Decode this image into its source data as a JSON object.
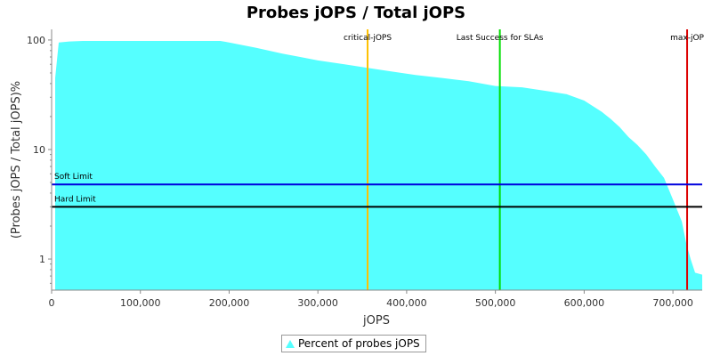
{
  "chart_data": {
    "type": "area",
    "title": "Probes jOPS / Total jOPS",
    "xlabel": "jOPS",
    "ylabel": "(Probes jOPS / Total jOPS)%",
    "x_scale": "linear",
    "y_scale": "log",
    "xlim": [
      0,
      733000
    ],
    "ylim": [
      0.52,
      125
    ],
    "x_tick_labels": [
      "0",
      "100,000",
      "200,000",
      "300,000",
      "400,000",
      "500,000",
      "600,000",
      "700,000"
    ],
    "x_ticks": [
      0,
      100000,
      200000,
      300000,
      400000,
      500000,
      600000,
      700000
    ],
    "y_tick_labels": [
      "1",
      "10",
      "100"
    ],
    "y_ticks": [
      1,
      10,
      100
    ],
    "grid": false,
    "legend_position": "bottom",
    "series": [
      {
        "name": "Percent of probes jOPS",
        "color": "#55ffff",
        "x": [
          4000,
          8000,
          20000,
          35000,
          100000,
          150000,
          190000,
          200000,
          230000,
          260000,
          280000,
          300000,
          330000,
          360000,
          380000,
          410000,
          440000,
          470000,
          500000,
          530000,
          560000,
          580000,
          600000,
          620000,
          630000,
          640000,
          650000,
          660000,
          670000,
          680000,
          690000,
          700000,
          710000,
          715000,
          720000,
          725000,
          733000
        ],
        "y": [
          45,
          95,
          97,
          98,
          98,
          98,
          98,
          95,
          85,
          75,
          70,
          65,
          60,
          55,
          52,
          48,
          45,
          42,
          38,
          37,
          34,
          32,
          28,
          22,
          19,
          16,
          13,
          11,
          9,
          7,
          5.5,
          3.5,
          2.2,
          1.4,
          1.0,
          0.75,
          0.72
        ]
      }
    ],
    "reference_lines": [
      {
        "orientation": "vertical",
        "value": 356000,
        "label": "critical-jOPS",
        "color": "#ffc000"
      },
      {
        "orientation": "vertical",
        "value": 505000,
        "label": "Last Success for SLAs",
        "color": "#00dd00"
      },
      {
        "orientation": "vertical",
        "value": 716000,
        "label": "max-jOP",
        "color": "#dd0000"
      },
      {
        "orientation": "horizontal",
        "value": 4.8,
        "label": "Soft Limit",
        "color": "#0000dd"
      },
      {
        "orientation": "horizontal",
        "value": 3.0,
        "label": "Hard Limit",
        "color": "#000000"
      }
    ]
  }
}
